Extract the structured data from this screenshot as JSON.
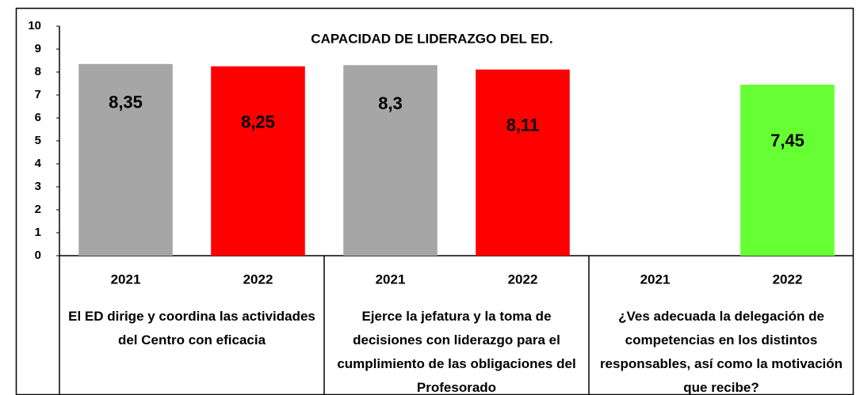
{
  "chart_data": {
    "type": "bar",
    "title": "CAPACIDAD DE LIDERAZGO DEL ED.",
    "categories": [
      "2021",
      "2022",
      "2021",
      "2022",
      "2021",
      "2022"
    ],
    "groups": [
      "El ED dirige y coordina las actividades del Centro con eficacia",
      "Ejerce la jefatura y la toma de decisiones con liderazgo para el cumplimiento de las obligaciones del Profesorado",
      "¿Ves adecuada la delegación de competencias en los distintos responsables, así como la motivación que recibe?"
    ],
    "values": [
      8.35,
      8.25,
      8.3,
      8.11,
      null,
      7.45
    ],
    "value_labels": [
      "8,35",
      "8,25",
      "8,3",
      "8,11",
      null,
      "7,45"
    ],
    "colors": [
      "#a6a6a6",
      "#ff0000",
      "#a6a6a6",
      "#ff0000",
      null,
      "#66ff33"
    ],
    "ylim": [
      0,
      10
    ],
    "yticks": [
      0,
      1,
      2,
      3,
      4,
      5,
      6,
      7,
      8,
      9,
      10
    ],
    "grid": false
  }
}
